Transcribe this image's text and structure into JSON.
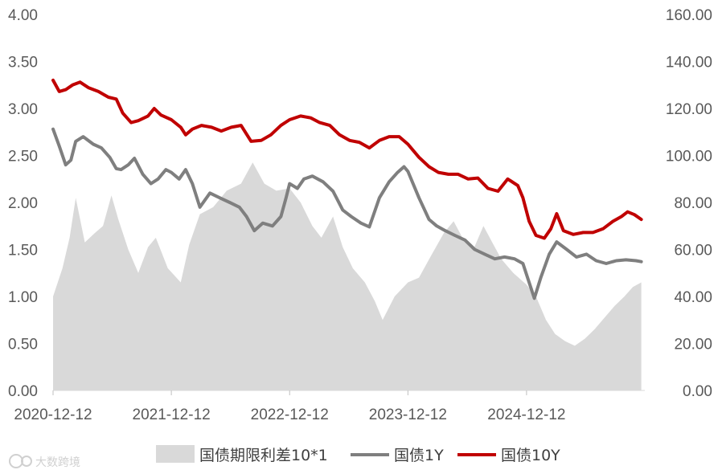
{
  "chart_data": {
    "type": "line",
    "title": "",
    "xlabel": "",
    "ylabel": "",
    "x_ticks": [
      "2020-12-12",
      "2021-12-12",
      "2022-12-12",
      "2023-12-12",
      "2024-12-12"
    ],
    "x_range": [
      "2020-12-12",
      "2025-12-12"
    ],
    "y_left": {
      "range": [
        0,
        4
      ],
      "ticks": [
        "0.00",
        "0.50",
        "1.00",
        "1.50",
        "2.00",
        "2.50",
        "3.00",
        "3.50",
        "4.00"
      ]
    },
    "y_right": {
      "range": [
        0,
        160
      ],
      "ticks": [
        "0.00",
        "20.00",
        "40.00",
        "60.00",
        "80.00",
        "100.00",
        "120.00",
        "140.00",
        "160.00"
      ]
    },
    "grid": false,
    "legend_position": "bottom",
    "series": [
      {
        "name": "国债期限利差10*1",
        "kind": "area",
        "axis": "right",
        "color": "#d9d9d9",
        "points": [
          [
            "2020-12-12",
            40
          ],
          [
            "2021-01-10",
            52
          ],
          [
            "2021-02-01",
            65
          ],
          [
            "2021-02-20",
            82
          ],
          [
            "2021-03-20",
            63
          ],
          [
            "2021-04-20",
            67
          ],
          [
            "2021-05-15",
            70
          ],
          [
            "2021-06-10",
            83
          ],
          [
            "2021-07-01",
            73
          ],
          [
            "2021-08-01",
            60
          ],
          [
            "2021-09-01",
            50
          ],
          [
            "2021-10-01",
            61
          ],
          [
            "2021-10-25",
            65
          ],
          [
            "2021-12-01",
            52
          ],
          [
            "2022-01-10",
            46
          ],
          [
            "2022-02-05",
            62
          ],
          [
            "2022-03-10",
            75
          ],
          [
            "2022-04-20",
            78
          ],
          [
            "2022-06-01",
            85
          ],
          [
            "2022-07-15",
            88
          ],
          [
            "2022-08-20",
            97
          ],
          [
            "2022-09-25",
            88
          ],
          [
            "2022-11-01",
            85
          ],
          [
            "2022-12-12",
            86
          ],
          [
            "2023-01-15",
            80
          ],
          [
            "2023-02-20",
            70
          ],
          [
            "2023-03-20",
            65
          ],
          [
            "2023-04-25",
            74
          ],
          [
            "2023-05-25",
            61
          ],
          [
            "2023-06-25",
            52
          ],
          [
            "2023-08-01",
            46
          ],
          [
            "2023-09-01",
            38
          ],
          [
            "2023-09-25",
            30
          ],
          [
            "2023-11-01",
            40
          ],
          [
            "2023-12-12",
            46
          ],
          [
            "2024-01-15",
            48
          ],
          [
            "2024-02-20",
            57
          ],
          [
            "2024-04-01",
            67
          ],
          [
            "2024-05-01",
            72
          ],
          [
            "2024-06-01",
            64
          ],
          [
            "2024-07-01",
            60
          ],
          [
            "2024-08-01",
            70
          ],
          [
            "2024-09-01",
            62
          ],
          [
            "2024-09-25",
            56
          ],
          [
            "2024-11-01",
            50
          ],
          [
            "2024-12-12",
            45
          ],
          [
            "2025-01-10",
            40
          ],
          [
            "2025-02-10",
            30
          ],
          [
            "2025-03-10",
            24
          ],
          [
            "2025-04-10",
            21
          ],
          [
            "2025-05-10",
            19
          ],
          [
            "2025-06-10",
            22
          ],
          [
            "2025-07-10",
            26
          ],
          [
            "2025-08-10",
            31
          ],
          [
            "2025-09-10",
            36
          ],
          [
            "2025-10-10",
            40
          ],
          [
            "2025-11-05",
            44
          ],
          [
            "2025-12-01",
            46
          ]
        ]
      },
      {
        "name": "国债1Y",
        "kind": "line",
        "axis": "left",
        "color": "#7f7f7f",
        "points": [
          [
            "2020-12-12",
            2.78
          ],
          [
            "2020-12-31",
            2.6
          ],
          [
            "2021-01-20",
            2.4
          ],
          [
            "2021-02-05",
            2.45
          ],
          [
            "2021-02-20",
            2.65
          ],
          [
            "2021-03-15",
            2.7
          ],
          [
            "2021-04-15",
            2.62
          ],
          [
            "2021-05-10",
            2.58
          ],
          [
            "2021-06-05",
            2.48
          ],
          [
            "2021-06-25",
            2.36
          ],
          [
            "2021-07-10",
            2.35
          ],
          [
            "2021-08-01",
            2.4
          ],
          [
            "2021-08-20",
            2.47
          ],
          [
            "2021-09-15",
            2.3
          ],
          [
            "2021-10-10",
            2.2
          ],
          [
            "2021-11-01",
            2.25
          ],
          [
            "2021-11-25",
            2.35
          ],
          [
            "2021-12-12",
            2.32
          ],
          [
            "2022-01-05",
            2.25
          ],
          [
            "2022-01-25",
            2.35
          ],
          [
            "2022-02-15",
            2.2
          ],
          [
            "2022-03-10",
            1.95
          ],
          [
            "2022-04-10",
            2.1
          ],
          [
            "2022-05-10",
            2.05
          ],
          [
            "2022-06-10",
            2.0
          ],
          [
            "2022-07-10",
            1.95
          ],
          [
            "2022-08-01",
            1.85
          ],
          [
            "2022-08-25",
            1.7
          ],
          [
            "2022-09-20",
            1.78
          ],
          [
            "2022-10-20",
            1.75
          ],
          [
            "2022-11-15",
            1.85
          ],
          [
            "2022-12-01",
            2.05
          ],
          [
            "2022-12-12",
            2.2
          ],
          [
            "2023-01-05",
            2.15
          ],
          [
            "2023-01-25",
            2.25
          ],
          [
            "2023-02-20",
            2.28
          ],
          [
            "2023-03-25",
            2.22
          ],
          [
            "2023-04-25",
            2.12
          ],
          [
            "2023-05-25",
            1.92
          ],
          [
            "2023-06-20",
            1.85
          ],
          [
            "2023-07-20",
            1.78
          ],
          [
            "2023-08-15",
            1.74
          ],
          [
            "2023-09-15",
            2.05
          ],
          [
            "2023-10-15",
            2.22
          ],
          [
            "2023-11-10",
            2.32
          ],
          [
            "2023-11-30",
            2.38
          ],
          [
            "2023-12-12",
            2.33
          ],
          [
            "2024-01-15",
            2.05
          ],
          [
            "2024-02-15",
            1.82
          ],
          [
            "2024-03-10",
            1.75
          ],
          [
            "2024-04-05",
            1.7
          ],
          [
            "2024-05-05",
            1.65
          ],
          [
            "2024-06-05",
            1.6
          ],
          [
            "2024-07-05",
            1.5
          ],
          [
            "2024-08-05",
            1.45
          ],
          [
            "2024-09-05",
            1.4
          ],
          [
            "2024-10-05",
            1.42
          ],
          [
            "2024-11-05",
            1.4
          ],
          [
            "2024-12-01",
            1.35
          ],
          [
            "2024-12-20",
            1.15
          ],
          [
            "2025-01-05",
            0.98
          ],
          [
            "2025-01-25",
            1.2
          ],
          [
            "2025-02-20",
            1.45
          ],
          [
            "2025-03-15",
            1.58
          ],
          [
            "2025-04-15",
            1.5
          ],
          [
            "2025-05-15",
            1.42
          ],
          [
            "2025-06-15",
            1.45
          ],
          [
            "2025-07-15",
            1.38
          ],
          [
            "2025-08-15",
            1.35
          ],
          [
            "2025-09-15",
            1.38
          ],
          [
            "2025-10-15",
            1.39
          ],
          [
            "2025-11-15",
            1.38
          ],
          [
            "2025-12-01",
            1.37
          ]
        ]
      },
      {
        "name": "国债10Y",
        "kind": "line",
        "axis": "left",
        "color": "#c00000",
        "points": [
          [
            "2020-12-12",
            3.3
          ],
          [
            "2020-12-31",
            3.18
          ],
          [
            "2021-01-20",
            3.2
          ],
          [
            "2021-02-10",
            3.25
          ],
          [
            "2021-03-05",
            3.28
          ],
          [
            "2021-04-01",
            3.22
          ],
          [
            "2021-05-01",
            3.18
          ],
          [
            "2021-06-01",
            3.12
          ],
          [
            "2021-06-25",
            3.1
          ],
          [
            "2021-07-15",
            2.95
          ],
          [
            "2021-08-10",
            2.85
          ],
          [
            "2021-09-01",
            2.87
          ],
          [
            "2021-10-01",
            2.92
          ],
          [
            "2021-10-20",
            3.0
          ],
          [
            "2021-11-10",
            2.93
          ],
          [
            "2021-12-12",
            2.88
          ],
          [
            "2022-01-10",
            2.8
          ],
          [
            "2022-01-25",
            2.72
          ],
          [
            "2022-02-15",
            2.78
          ],
          [
            "2022-03-15",
            2.82
          ],
          [
            "2022-04-15",
            2.8
          ],
          [
            "2022-05-15",
            2.76
          ],
          [
            "2022-06-15",
            2.8
          ],
          [
            "2022-07-15",
            2.82
          ],
          [
            "2022-08-15",
            2.65
          ],
          [
            "2022-09-15",
            2.66
          ],
          [
            "2022-10-15",
            2.72
          ],
          [
            "2022-11-15",
            2.82
          ],
          [
            "2022-12-12",
            2.88
          ],
          [
            "2023-01-15",
            2.92
          ],
          [
            "2023-02-15",
            2.9
          ],
          [
            "2023-03-15",
            2.85
          ],
          [
            "2023-04-15",
            2.82
          ],
          [
            "2023-05-15",
            2.72
          ],
          [
            "2023-06-15",
            2.66
          ],
          [
            "2023-07-15",
            2.64
          ],
          [
            "2023-08-15",
            2.58
          ],
          [
            "2023-09-15",
            2.66
          ],
          [
            "2023-10-15",
            2.7
          ],
          [
            "2023-11-15",
            2.7
          ],
          [
            "2023-12-12",
            2.62
          ],
          [
            "2024-01-15",
            2.48
          ],
          [
            "2024-02-15",
            2.38
          ],
          [
            "2024-03-15",
            2.32
          ],
          [
            "2024-04-15",
            2.3
          ],
          [
            "2024-05-15",
            2.3
          ],
          [
            "2024-06-15",
            2.25
          ],
          [
            "2024-07-15",
            2.26
          ],
          [
            "2024-08-15",
            2.15
          ],
          [
            "2024-09-15",
            2.12
          ],
          [
            "2024-10-15",
            2.25
          ],
          [
            "2024-11-15",
            2.18
          ],
          [
            "2024-12-01",
            2.05
          ],
          [
            "2024-12-20",
            1.8
          ],
          [
            "2025-01-10",
            1.65
          ],
          [
            "2025-02-05",
            1.62
          ],
          [
            "2025-02-25",
            1.72
          ],
          [
            "2025-03-15",
            1.88
          ],
          [
            "2025-04-05",
            1.7
          ],
          [
            "2025-05-05",
            1.66
          ],
          [
            "2025-06-05",
            1.68
          ],
          [
            "2025-07-05",
            1.68
          ],
          [
            "2025-08-05",
            1.72
          ],
          [
            "2025-09-05",
            1.8
          ],
          [
            "2025-10-01",
            1.85
          ],
          [
            "2025-10-20",
            1.9
          ],
          [
            "2025-11-10",
            1.87
          ],
          [
            "2025-12-01",
            1.82
          ]
        ]
      }
    ]
  },
  "legend": [
    {
      "label": "国债期限利差10*1",
      "color": "#d9d9d9",
      "symbol": "box"
    },
    {
      "label": "国债1Y",
      "color": "#7f7f7f",
      "symbol": "line"
    },
    {
      "label": "国债10Y",
      "color": "#c00000",
      "symbol": "line"
    }
  ],
  "watermark": {
    "icon": "watermark-logo-icon",
    "text": "大数跨境"
  }
}
